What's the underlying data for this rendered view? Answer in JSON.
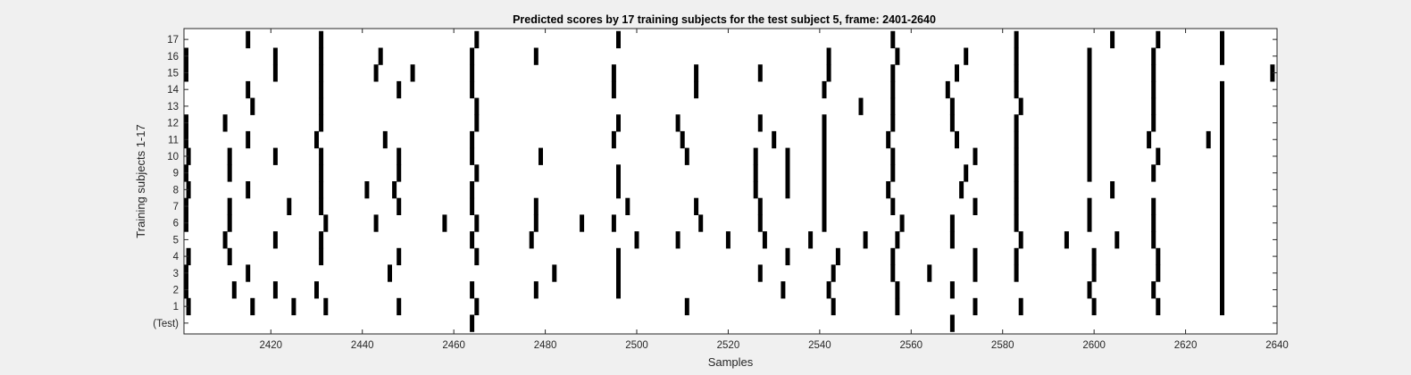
{
  "chart_data": {
    "type": "raster",
    "title": "Predicted scores by 17 training subjects for the test subject 5, frame: 2401-2640",
    "xlabel": "Samples",
    "ylabel": "Training subjects 1-17",
    "xlim": [
      2401,
      2640
    ],
    "x_ticks": [
      2420,
      2440,
      2460,
      2480,
      2500,
      2520,
      2540,
      2560,
      2580,
      2600,
      2620,
      2640
    ],
    "y_tick_labels": [
      "(Test)",
      "1",
      "2",
      "3",
      "4",
      "5",
      "6",
      "7",
      "8",
      "9",
      "10",
      "11",
      "12",
      "13",
      "14",
      "15",
      "16",
      "17"
    ],
    "grid": false,
    "colors": {
      "background": "#f0f0f0",
      "axes": "#ffffff",
      "event": "#000000",
      "frame": "#262626"
    },
    "rows": [
      {
        "label": "(Test)",
        "events": [
          2464,
          2569
        ]
      },
      {
        "label": "1",
        "events": [
          2402,
          2416,
          2425,
          2432,
          2448,
          2465,
          2511,
          2543,
          2557,
          2574,
          2584,
          2600,
          2614,
          2628
        ]
      },
      {
        "label": "2",
        "events": [
          2401,
          2412,
          2421,
          2430,
          2464,
          2478,
          2496,
          2532,
          2542,
          2557,
          2569,
          2599,
          2613,
          2628
        ]
      },
      {
        "label": "3",
        "events": [
          2401,
          2415,
          2446,
          2482,
          2496,
          2527,
          2543,
          2556,
          2564,
          2574,
          2583,
          2600,
          2614,
          2628
        ]
      },
      {
        "label": "4",
        "events": [
          2402,
          2411,
          2431,
          2448,
          2465,
          2496,
          2533,
          2544,
          2556,
          2574,
          2583,
          2600,
          2614,
          2628
        ]
      },
      {
        "label": "5",
        "events": [
          2410,
          2421,
          2431,
          2464,
          2477,
          2500,
          2509,
          2520,
          2528,
          2538,
          2550,
          2557,
          2569,
          2584,
          2594,
          2605,
          2613,
          2628
        ]
      },
      {
        "label": "6",
        "events": [
          2401,
          2411,
          2432,
          2443,
          2458,
          2465,
          2478,
          2488,
          2495,
          2514,
          2527,
          2541,
          2558,
          2569,
          2583,
          2599,
          2613,
          2628
        ]
      },
      {
        "label": "7",
        "events": [
          2401,
          2411,
          2424,
          2431,
          2448,
          2464,
          2478,
          2498,
          2513,
          2527,
          2541,
          2556,
          2574,
          2583,
          2599,
          2613,
          2628
        ]
      },
      {
        "label": "8",
        "events": [
          2402,
          2415,
          2431,
          2441,
          2447,
          2464,
          2496,
          2526,
          2533,
          2541,
          2555,
          2571,
          2583,
          2604,
          2628
        ]
      },
      {
        "label": "9",
        "events": [
          2401,
          2411,
          2431,
          2448,
          2465,
          2496,
          2526,
          2533,
          2541,
          2556,
          2572,
          2583,
          2599,
          2613,
          2628
        ]
      },
      {
        "label": "10",
        "events": [
          2402,
          2411,
          2421,
          2431,
          2448,
          2464,
          2479,
          2511,
          2526,
          2533,
          2541,
          2556,
          2574,
          2583,
          2599,
          2614,
          2628
        ]
      },
      {
        "label": "11",
        "events": [
          2401,
          2415,
          2430,
          2445,
          2464,
          2495,
          2510,
          2530,
          2541,
          2555,
          2570,
          2583,
          2599,
          2612,
          2625,
          2628
        ]
      },
      {
        "label": "12",
        "events": [
          2401,
          2410,
          2431,
          2465,
          2496,
          2509,
          2527,
          2541,
          2556,
          2569,
          2583,
          2599,
          2613,
          2628
        ]
      },
      {
        "label": "13",
        "events": [
          2416,
          2431,
          2465,
          2549,
          2556,
          2569,
          2584,
          2599,
          2613,
          2628
        ]
      },
      {
        "label": "14",
        "events": [
          2415,
          2431,
          2448,
          2464,
          2495,
          2513,
          2541,
          2556,
          2568,
          2583,
          2599,
          2613,
          2628
        ]
      },
      {
        "label": "15",
        "events": [
          2401,
          2421,
          2431,
          2443,
          2451,
          2464,
          2495,
          2513,
          2527,
          2542,
          2556,
          2570,
          2583,
          2599,
          2613,
          2639
        ]
      },
      {
        "label": "16",
        "events": [
          2401,
          2421,
          2431,
          2444,
          2464,
          2478,
          2542,
          2557,
          2572,
          2583,
          2599,
          2613,
          2628
        ]
      },
      {
        "label": "17",
        "events": [
          2415,
          2431,
          2465,
          2496,
          2556,
          2583,
          2604,
          2614,
          2628
        ]
      }
    ]
  }
}
